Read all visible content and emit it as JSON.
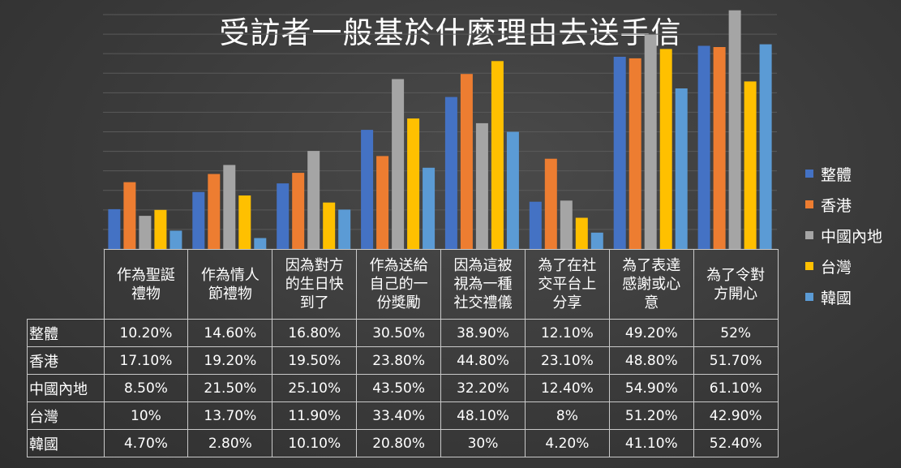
{
  "title": "受訪者一般基於什麼理由去送手信",
  "colors": {
    "整體": "#4472c4",
    "香港": "#ed7d31",
    "中國內地": "#a5a5a5",
    "台灣": "#ffc000",
    "韓國": "#5b9bd5"
  },
  "chart_data": {
    "type": "bar",
    "title": "受訪者一般基於什麼理由去送手信",
    "categories": [
      "作為聖誕禮物",
      "作為情人節禮物",
      "因為對方的生日快到了",
      "作為送給自己的一份獎勵",
      "因為這被視為一種社交禮儀",
      "為了在社交平台上分享",
      "為了表達感謝或心意",
      "為了令對方開心"
    ],
    "series": [
      {
        "name": "整體",
        "values": [
          10.2,
          14.6,
          16.8,
          30.5,
          38.9,
          12.1,
          49.2,
          52
        ]
      },
      {
        "name": "香港",
        "values": [
          17.1,
          19.2,
          19.5,
          23.8,
          44.8,
          23.1,
          48.8,
          51.7
        ]
      },
      {
        "name": "中國內地",
        "values": [
          8.5,
          21.5,
          25.1,
          43.5,
          32.2,
          12.4,
          54.9,
          61.1
        ]
      },
      {
        "name": "台灣",
        "values": [
          10,
          13.7,
          11.9,
          33.4,
          48.1,
          8,
          51.2,
          42.9
        ]
      },
      {
        "name": "韓國",
        "values": [
          4.7,
          2.8,
          10.1,
          20.8,
          30,
          4.2,
          41.1,
          52.4
        ]
      }
    ],
    "ylim": [
      0,
      60
    ],
    "grid": true,
    "legend": "right",
    "data_table": {
      "header_lines": [
        [
          "作為聖誕",
          "禮物"
        ],
        [
          "作為情人",
          "節禮物"
        ],
        [
          "因為對方",
          "的生日快",
          "到了"
        ],
        [
          "作為送給",
          "自己的一",
          "份獎勵"
        ],
        [
          "因為這被",
          "視為一種",
          "社交禮儀"
        ],
        [
          "為了在社",
          "交平台上",
          "分享"
        ],
        [
          "為了表達",
          "感謝或心",
          "意"
        ],
        [
          "為了令對",
          "方開心"
        ]
      ],
      "rows": [
        {
          "label": "整體",
          "cells": [
            "10.20%",
            "14.60%",
            "16.80%",
            "30.50%",
            "38.90%",
            "12.10%",
            "49.20%",
            "52%"
          ]
        },
        {
          "label": "香港",
          "cells": [
            "17.10%",
            "19.20%",
            "19.50%",
            "23.80%",
            "44.80%",
            "23.10%",
            "48.80%",
            "51.70%"
          ]
        },
        {
          "label": "中國內地",
          "cells": [
            "8.50%",
            "21.50%",
            "25.10%",
            "43.50%",
            "32.20%",
            "12.40%",
            "54.90%",
            "61.10%"
          ]
        },
        {
          "label": "台灣",
          "cells": [
            "10%",
            "13.70%",
            "11.90%",
            "33.40%",
            "48.10%",
            "8%",
            "51.20%",
            "42.90%"
          ]
        },
        {
          "label": "韓國",
          "cells": [
            "4.70%",
            "2.80%",
            "10.10%",
            "20.80%",
            "30%",
            "4.20%",
            "41.10%",
            "52.40%"
          ]
        }
      ]
    }
  }
}
